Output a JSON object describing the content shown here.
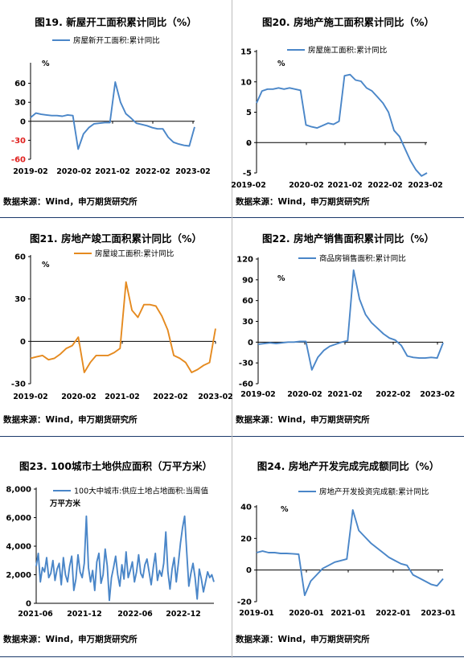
{
  "charts": [
    {
      "title": "图19. 新屋开工面积累计同比（%）",
      "source": "数据来源：Wind，申万期货研究所",
      "chart_data": {
        "type": "line",
        "unit": "%",
        "legend_position": "top-left",
        "color": "#4a86c8",
        "series": [
          {
            "name": "房屋新开工面积:累计同比",
            "values": [
              6,
              13,
              11,
              10,
              9,
              9,
              8,
              10,
              9,
              -44,
              -20,
              -10,
              -4,
              -3,
              -2,
              -2,
              62,
              30,
              12,
              5,
              -3,
              -5,
              -7,
              -10,
              -12,
              -12,
              -25,
              -33,
              -36,
              -38,
              -39,
              -9
            ]
          }
        ],
        "x_ticks": [
          "2019-02",
          "2020-02",
          "2021-02",
          "2022-02",
          "2023-02"
        ],
        "y_ticks": [
          60,
          30,
          0,
          -30,
          -60
        ],
        "y_ticks_red": [
          -30,
          -60
        ],
        "ylim": [
          -60,
          90
        ]
      }
    },
    {
      "title": "图20. 房地产施工面积累计同比（%）",
      "source": "数据来源：Wind，申万期货研究所",
      "chart_data": {
        "type": "line",
        "unit": "%",
        "legend_position": "top-left",
        "color": "#4a86c8",
        "series": [
          {
            "name": "房屋施工面积:累计同比",
            "values": [
              6.5,
              8.5,
              8.8,
              8.8,
              9,
              8.8,
              9,
              8.8,
              8.6,
              2.9,
              2.6,
              2.4,
              2.8,
              3.2,
              3,
              3.5,
              11,
              11.2,
              10.3,
              10.1,
              9,
              8.5,
              7.5,
              6.5,
              5,
              2,
              1,
              -1,
              -3,
              -4.5,
              -5.5,
              -5
            ]
          }
        ],
        "x_ticks": [
          "2019-02",
          "2020-02",
          "2021-02",
          "2022-02",
          "2023-02"
        ],
        "y_ticks": [
          15,
          10,
          5,
          0,
          -5
        ],
        "ylim": [
          -5,
          15
        ]
      }
    },
    {
      "title": "图21. 房地产竣工面积累计同比（%）",
      "source": "数据来源：Wind，申万期货研究所",
      "chart_data": {
        "type": "line",
        "unit": "%",
        "legend_position": "top-center",
        "color": "#e58a1f",
        "series": [
          {
            "name": "房屋竣工面积:累计同比",
            "values": [
              -12,
              -11,
              -10,
              -13,
              -12,
              -9,
              -5,
              -3,
              3,
              -22,
              -15,
              -10,
              -10,
              -10,
              -8,
              -5,
              42,
              22,
              17,
              26,
              26,
              25,
              18,
              8,
              -10,
              -12,
              -15,
              -22,
              -20,
              -17,
              -15,
              9
            ]
          }
        ],
        "x_ticks": [
          "2019-02",
          "2020-02",
          "2021-02",
          "2022-02",
          "2023-02"
        ],
        "y_ticks": [
          60,
          30,
          0,
          -30
        ],
        "ylim": [
          -30,
          60
        ]
      }
    },
    {
      "title": "图22. 房地产销售面积累计同比（%）",
      "source": "数据来源：Wind，申万期货研究所",
      "chart_data": {
        "type": "line",
        "unit": "%",
        "legend_position": "top-center",
        "color": "#4a86c8",
        "series": [
          {
            "name": "商品房销售面积:累计同比",
            "values": [
              -3,
              -2,
              -1,
              -2,
              -1,
              0,
              0,
              1,
              1,
              -40,
              -22,
              -12,
              -6,
              -3,
              0,
              2,
              104,
              62,
              40,
              28,
              20,
              12,
              6,
              3,
              -5,
              -20,
              -22,
              -23,
              -23,
              -22,
              -23,
              -1
            ]
          }
        ],
        "x_ticks": [
          "2019-02",
          "2020-02",
          "2021-02",
          "2022-02",
          "2023-02"
        ],
        "y_ticks": [
          120,
          90,
          60,
          30,
          0,
          -30,
          -60
        ],
        "ylim": [
          -60,
          120
        ]
      }
    },
    {
      "title": "图23. 100城市土地供应面积（万平方米）",
      "source": "数据来源：Wind，申万期货研究所",
      "chart_data": {
        "type": "line",
        "unit": "万平方米",
        "legend_position": "top-left",
        "color": "#4a86c8",
        "series": [
          {
            "name": "100大中城市:供应土地占地面积:当周值",
            "values": [
              2600,
              3500,
              1500,
              2500,
              2200,
              3200,
              1800,
              2100,
              3000,
              1600,
              2400,
              2800,
              1300,
              3200,
              2000,
              1500,
              2600,
              3300,
              900,
              1700,
              3400,
              2200,
              1800,
              2800,
              6100,
              2500,
              1500,
              2300,
              900,
              2900,
              3500,
              1400,
              2000,
              3800,
              2600,
              200,
              1800,
              2500,
              3300,
              2000,
              1200,
              2700,
              1700,
              3600,
              1800,
              2300,
              2900,
              1500,
              2200,
              3400,
              2100,
              1800,
              2700,
              3100,
              2200,
              1300,
              2500,
              3500,
              1600,
              2300,
              1900,
              2800,
              5000,
              2200,
              1000,
              2400,
              3200,
              1500,
              2800,
              4200,
              5300,
              6100,
              3600,
              1200,
              2100,
              2800,
              1800,
              300,
              2400,
              1700,
              800,
              1500,
              2200,
              1800,
              2000,
              1500
            ]
          }
        ],
        "x_ticks": [
          "2021-06",
          "2021-12",
          "2022-06",
          "2022-12"
        ],
        "y_ticks": [
          "8,000",
          "6,000",
          "4,000",
          "2,000",
          "0"
        ],
        "ylim": [
          0,
          8000
        ]
      }
    },
    {
      "title": "图24. 房地产开发完成完成额同比（%）",
      "source": "数据来源：Wind，申万期货研究所",
      "chart_data": {
        "type": "line",
        "unit": "%",
        "legend_position": "top-center",
        "color": "#4a86c8",
        "series": [
          {
            "name": "房地产开发投资完成额:累计同比",
            "values": [
              11,
              12,
              11,
              11,
              10.5,
              10.5,
              10.3,
              10,
              -16,
              -7,
              -3,
              1,
              3,
              5,
              6,
              7,
              38,
              25,
              21,
              17,
              14,
              11,
              8,
              6,
              4,
              3,
              -3,
              -5,
              -7,
              -9,
              -10,
              -5.5
            ]
          }
        ],
        "x_ticks": [
          "2019-01",
          "2020-01",
          "2021-01",
          "2022-01",
          "2023-01"
        ],
        "y_ticks": [
          40,
          20,
          0,
          -20
        ],
        "ylim": [
          -20,
          40
        ]
      }
    }
  ]
}
